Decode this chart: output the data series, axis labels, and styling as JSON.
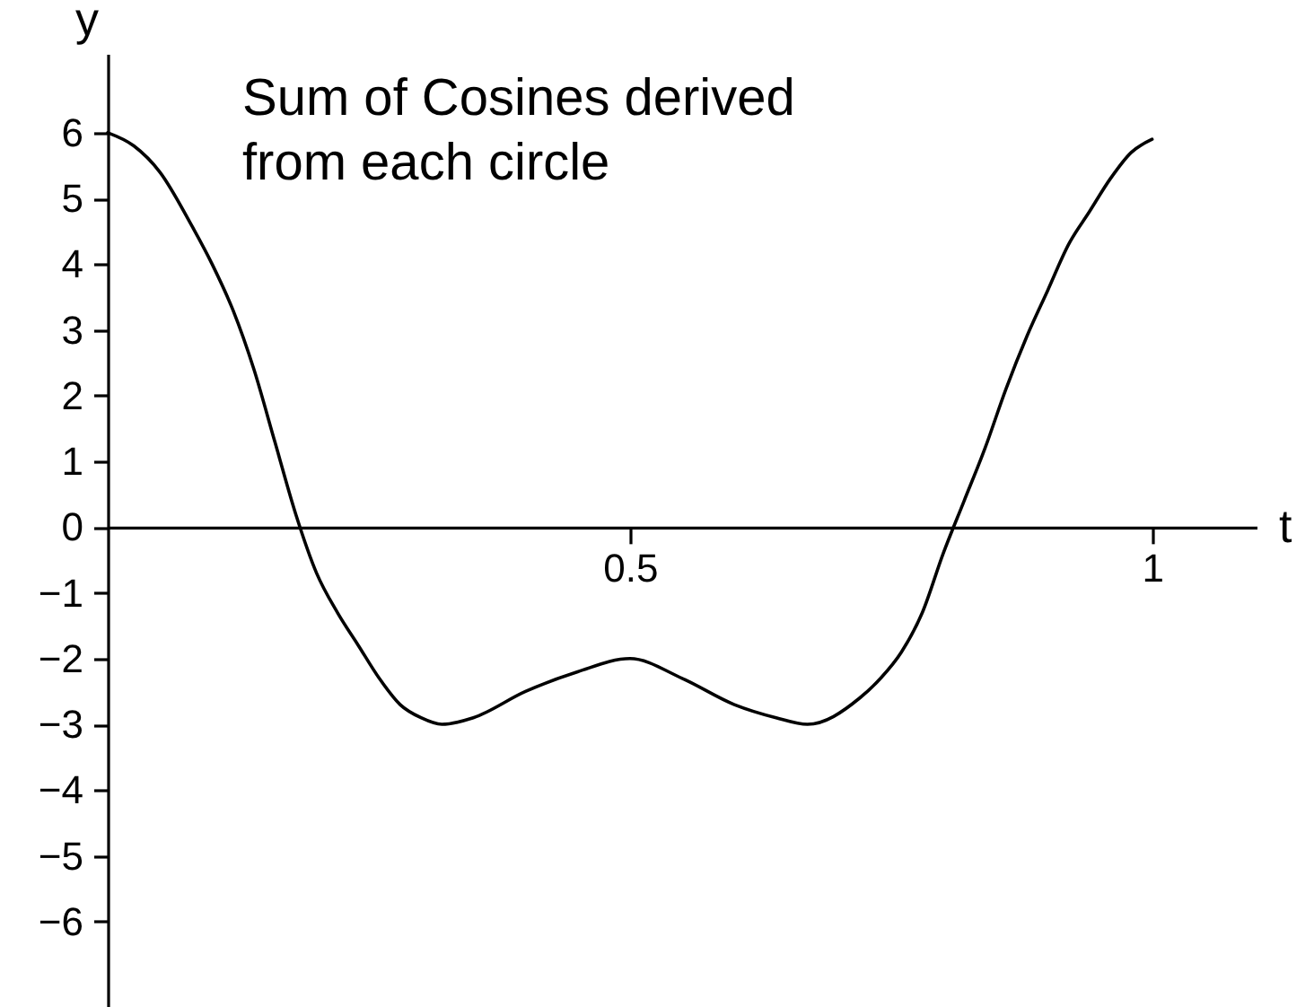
{
  "chart_data": {
    "type": "line",
    "title": "Sum of Cosines derived from each circle",
    "xlabel": "t",
    "ylabel": "y",
    "x": [
      0,
      0.025,
      0.05,
      0.08,
      0.1,
      0.12,
      0.14,
      0.16,
      0.18,
      0.2,
      0.22,
      0.24,
      0.26,
      0.28,
      0.3,
      0.32,
      0.35,
      0.4,
      0.45,
      0.5,
      0.55,
      0.6,
      0.64,
      0.67,
      0.72,
      0.74,
      0.76,
      0.78,
      0.8,
      0.82,
      0.84,
      0.86,
      0.88,
      0.9,
      0.92,
      0.94,
      0.96,
      0.98,
      1
    ],
    "series": [
      {
        "color": "#000000",
        "values": [
          6,
          5.8,
          5.4,
          4.6,
          4.0,
          3.3,
          2.4,
          1.3,
          0.2,
          -0.7,
          -1.3,
          -1.8,
          -2.3,
          -2.7,
          -2.9,
          -3,
          -2.9,
          -2.5,
          -2.2,
          -2,
          -2.3,
          -2.7,
          -2.9,
          -3,
          -2.6,
          -2.3,
          -1.9,
          -1.3,
          -0.4,
          0.4,
          1.2,
          2.1,
          2.9,
          3.6,
          4.3,
          4.8,
          5.3,
          5.7,
          5.9
        ]
      }
    ],
    "xlim": [
      0,
      1.1
    ],
    "ylim": [
      -7.3,
      7.2
    ],
    "xticks": [
      0.5,
      1
    ],
    "yticks": [
      -6,
      -5,
      -4,
      -3,
      -2,
      -1,
      0,
      1,
      2,
      3,
      4,
      5,
      6
    ],
    "grid": false,
    "line_style": "solid"
  }
}
